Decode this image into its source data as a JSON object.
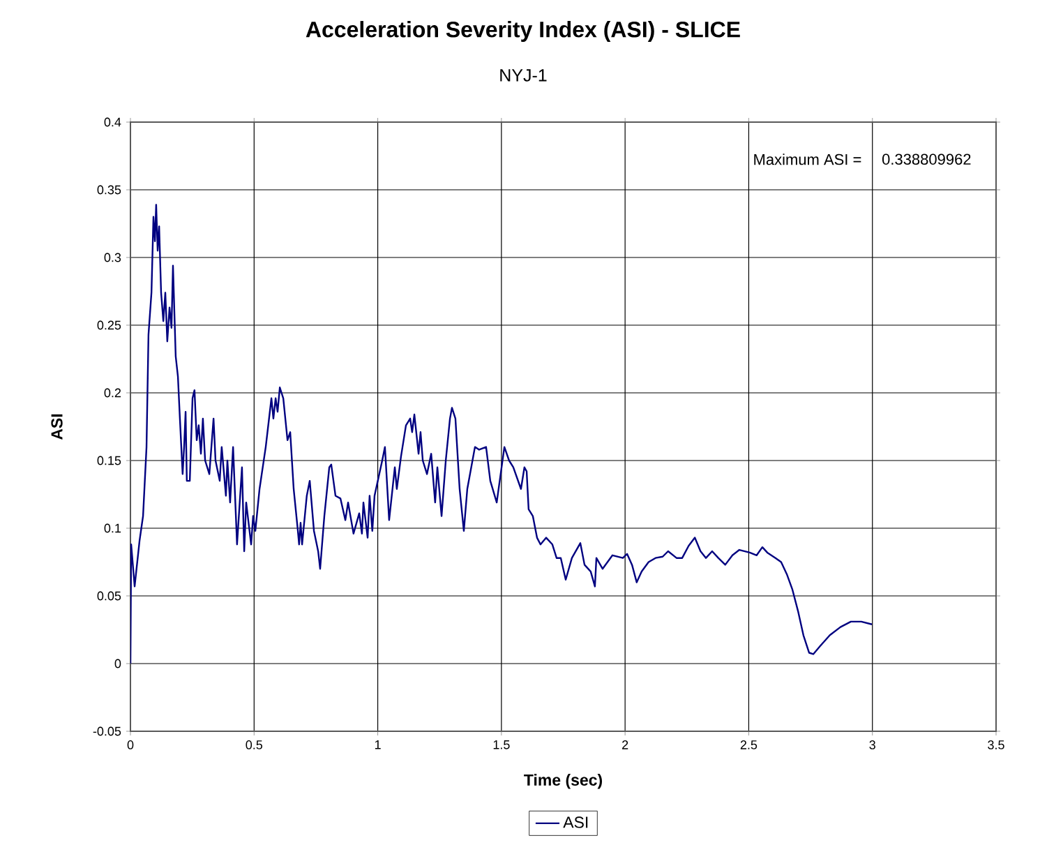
{
  "chart_data": {
    "type": "line",
    "title": "Acceleration Severity Index (ASI) - SLICE",
    "subtitle": "NYJ-1",
    "xlabel": "Time (sec)",
    "ylabel": "ASI",
    "annotations": [
      "Maximum ASI =",
      "0.338809962"
    ],
    "xlim": [
      0,
      3.5
    ],
    "xticks": [
      0,
      0.5,
      1,
      1.5,
      2,
      2.5,
      3,
      3.5
    ],
    "ylim": [
      -0.05,
      0.4
    ],
    "yticks": [
      -0.05,
      0,
      0.05,
      0.1,
      0.15,
      0.2,
      0.25,
      0.3,
      0.35,
      0.4
    ],
    "grid": true,
    "legend": "bottom",
    "marker": "none",
    "line_style": "solid",
    "series": [
      {
        "name": "ASI",
        "color": "#000080",
        "x": [
          0,
          0.003,
          0.017,
          0.037,
          0.051,
          0.065,
          0.073,
          0.085,
          0.093,
          0.099,
          0.104,
          0.11,
          0.116,
          0.124,
          0.133,
          0.141,
          0.149,
          0.158,
          0.166,
          0.172,
          0.183,
          0.192,
          0.2,
          0.211,
          0.217,
          0.223,
          0.228,
          0.24,
          0.251,
          0.259,
          0.268,
          0.276,
          0.285,
          0.293,
          0.302,
          0.319,
          0.336,
          0.344,
          0.361,
          0.369,
          0.386,
          0.392,
          0.403,
          0.415,
          0.431,
          0.451,
          0.46,
          0.468,
          0.488,
          0.496,
          0.505,
          0.522,
          0.547,
          0.57,
          0.578,
          0.587,
          0.595,
          0.604,
          0.618,
          0.635,
          0.646,
          0.66,
          0.677,
          0.682,
          0.688,
          0.694,
          0.713,
          0.725,
          0.742,
          0.759,
          0.767,
          0.784,
          0.804,
          0.812,
          0.829,
          0.849,
          0.869,
          0.88,
          0.902,
          0.925,
          0.936,
          0.942,
          0.959,
          0.967,
          0.978,
          0.987,
          1.018,
          1.029,
          1.046,
          1.069,
          1.077,
          1.094,
          1.114,
          1.131,
          1.139,
          1.148,
          1.165,
          1.173,
          1.182,
          1.199,
          1.216,
          1.232,
          1.241,
          1.258,
          1.275,
          1.292,
          1.3,
          1.314,
          1.331,
          1.348,
          1.362,
          1.393,
          1.41,
          1.438,
          1.455,
          1.481,
          1.512,
          1.531,
          1.548,
          1.579,
          1.593,
          1.602,
          1.61,
          1.627,
          1.644,
          1.658,
          1.681,
          1.706,
          1.723,
          1.74,
          1.76,
          1.785,
          1.819,
          1.836,
          1.861,
          1.878,
          1.884,
          1.909,
          1.949,
          1.991,
          2.008,
          2.028,
          2.047,
          2.067,
          2.095,
          2.123,
          2.152,
          2.174,
          2.208,
          2.231,
          2.257,
          2.282,
          2.305,
          2.327,
          2.352,
          2.377,
          2.405,
          2.434,
          2.462,
          2.504,
          2.532,
          2.555,
          2.575,
          2.608,
          2.631,
          2.654,
          2.676,
          2.699,
          2.721,
          2.744,
          2.761,
          2.789,
          2.828,
          2.871,
          2.913,
          2.955,
          2.998
        ],
        "values": [
          0,
          0.088,
          0.057,
          0.091,
          0.109,
          0.16,
          0.243,
          0.274,
          0.33,
          0.312,
          0.339,
          0.305,
          0.323,
          0.274,
          0.253,
          0.274,
          0.238,
          0.263,
          0.248,
          0.294,
          0.227,
          0.212,
          0.181,
          0.14,
          0.16,
          0.186,
          0.135,
          0.135,
          0.196,
          0.202,
          0.165,
          0.176,
          0.155,
          0.181,
          0.15,
          0.14,
          0.181,
          0.15,
          0.135,
          0.16,
          0.124,
          0.15,
          0.119,
          0.16,
          0.088,
          0.145,
          0.083,
          0.119,
          0.088,
          0.109,
          0.098,
          0.129,
          0.16,
          0.196,
          0.181,
          0.196,
          0.186,
          0.204,
          0.196,
          0.165,
          0.171,
          0.129,
          0.098,
          0.088,
          0.104,
          0.088,
          0.124,
          0.135,
          0.098,
          0.083,
          0.07,
          0.109,
          0.145,
          0.147,
          0.124,
          0.122,
          0.106,
          0.119,
          0.096,
          0.111,
          0.096,
          0.119,
          0.093,
          0.124,
          0.098,
          0.124,
          0.15,
          0.16,
          0.106,
          0.145,
          0.129,
          0.153,
          0.176,
          0.181,
          0.171,
          0.184,
          0.155,
          0.171,
          0.15,
          0.14,
          0.155,
          0.119,
          0.145,
          0.109,
          0.15,
          0.181,
          0.189,
          0.181,
          0.129,
          0.098,
          0.129,
          0.16,
          0.158,
          0.16,
          0.135,
          0.119,
          0.16,
          0.15,
          0.145,
          0.129,
          0.145,
          0.142,
          0.114,
          0.109,
          0.093,
          0.088,
          0.093,
          0.088,
          0.078,
          0.078,
          0.062,
          0.078,
          0.089,
          0.073,
          0.068,
          0.057,
          0.078,
          0.07,
          0.08,
          0.078,
          0.081,
          0.073,
          0.06,
          0.068,
          0.075,
          0.078,
          0.079,
          0.083,
          0.078,
          0.078,
          0.087,
          0.093,
          0.083,
          0.078,
          0.083,
          0.078,
          0.073,
          0.08,
          0.084,
          0.082,
          0.08,
          0.086,
          0.082,
          0.078,
          0.075,
          0.066,
          0.055,
          0.039,
          0.021,
          0.008,
          0.007,
          0.013,
          0.021,
          0.027,
          0.031,
          0.031,
          0.029
        ]
      }
    ]
  }
}
